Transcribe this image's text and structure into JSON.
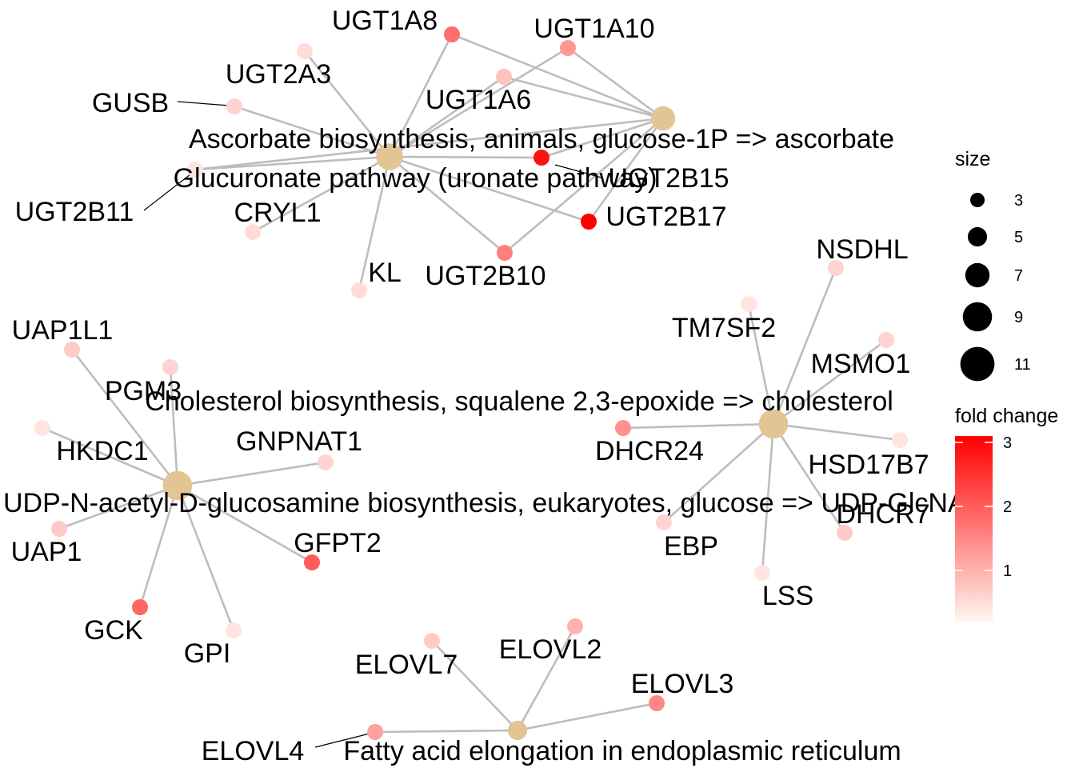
{
  "colors": {
    "category_node": "#E2C593",
    "edge": "#BDBDBD",
    "fold_change_low": "#FFF5F0",
    "fold_change_high": "#FF0000"
  },
  "categories": [
    {
      "id": "asc",
      "label": "Ascorbate biosynthesis, animals, glucose-1P => ascorbate",
      "size": 7
    },
    {
      "id": "glu",
      "label": "Glucuronate pathway (uronate pathway)",
      "size": 8
    },
    {
      "id": "chol",
      "label": "Cholesterol biosynthesis, squalene 2,3-epoxide => cholesterol",
      "size": 9
    },
    {
      "id": "udp",
      "label": "UDP-N-acetyl-D-glucosamine biosynthesis, eukaryotes, glucose => UDP-GlcNAc",
      "size": 9
    },
    {
      "id": "fat",
      "label": "Fatty acid elongation in endoplasmic reticulum",
      "size": 5
    }
  ],
  "genes": [
    {
      "id": "UGT1A8",
      "label": "UGT1A8",
      "fold_change": 1.8
    },
    {
      "id": "UGT1A10",
      "label": "UGT1A10",
      "fold_change": 1.3
    },
    {
      "id": "UGT2A3",
      "label": "UGT2A3",
      "fold_change": 0.5
    },
    {
      "id": "UGT1A6",
      "label": "UGT1A6",
      "fold_change": 0.8
    },
    {
      "id": "GUSB",
      "label": "GUSB",
      "fold_change": 0.6
    },
    {
      "id": "UGT2B15",
      "label": "UGT2B15",
      "fold_change": 2.9
    },
    {
      "id": "UGT2B11",
      "label": "UGT2B11",
      "fold_change": 0.4
    },
    {
      "id": "UGT2B17",
      "label": "UGT2B17",
      "fold_change": 3.1
    },
    {
      "id": "CRYL1",
      "label": "CRYL1",
      "fold_change": 0.5
    },
    {
      "id": "UGT2B10",
      "label": "UGT2B10",
      "fold_change": 1.6
    },
    {
      "id": "KL",
      "label": "KL",
      "fold_change": 0.5
    },
    {
      "id": "NSDHL",
      "label": "NSDHL",
      "fold_change": 0.6
    },
    {
      "id": "TM7SF2",
      "label": "TM7SF2",
      "fold_change": 0.4
    },
    {
      "id": "MSMO1",
      "label": "MSMO1",
      "fold_change": 0.6
    },
    {
      "id": "DHCR24",
      "label": "DHCR24",
      "fold_change": 1.4
    },
    {
      "id": "HSD17B7",
      "label": "HSD17B7",
      "fold_change": 0.4
    },
    {
      "id": "DHCR7",
      "label": "DHCR7",
      "fold_change": 0.7
    },
    {
      "id": "EBP",
      "label": "EBP",
      "fold_change": 0.6
    },
    {
      "id": "LSS",
      "label": "LSS",
      "fold_change": 0.4
    },
    {
      "id": "UAP1L1",
      "label": "UAP1L1",
      "fold_change": 0.7
    },
    {
      "id": "PGM3",
      "label": "PGM3",
      "fold_change": 0.6
    },
    {
      "id": "HKDC1",
      "label": "HKDC1",
      "fold_change": 0.4
    },
    {
      "id": "GNPNAT1",
      "label": "GNPNAT1",
      "fold_change": 0.6
    },
    {
      "id": "UAP1",
      "label": "UAP1",
      "fold_change": 0.7
    },
    {
      "id": "GFPT2",
      "label": "GFPT2",
      "fold_change": 2.0
    },
    {
      "id": "GCK",
      "label": "GCK",
      "fold_change": 1.9
    },
    {
      "id": "GPI",
      "label": "GPI",
      "fold_change": 0.4
    },
    {
      "id": "ELOVL7",
      "label": "ELOVL7",
      "fold_change": 0.7
    },
    {
      "id": "ELOVL2",
      "label": "ELOVL2",
      "fold_change": 1.0
    },
    {
      "id": "ELOVL3",
      "label": "ELOVL3",
      "fold_change": 1.5
    },
    {
      "id": "ELOVL4",
      "label": "ELOVL4",
      "fold_change": 1.2
    }
  ],
  "edges": [
    [
      "glu",
      "UGT1A8"
    ],
    [
      "glu",
      "UGT1A10"
    ],
    [
      "glu",
      "UGT2A3"
    ],
    [
      "glu",
      "UGT1A6"
    ],
    [
      "glu",
      "GUSB"
    ],
    [
      "glu",
      "UGT2B15"
    ],
    [
      "glu",
      "UGT2B11"
    ],
    [
      "glu",
      "UGT2B17"
    ],
    [
      "glu",
      "CRYL1"
    ],
    [
      "glu",
      "UGT2B10"
    ],
    [
      "glu",
      "KL"
    ],
    [
      "asc",
      "UGT1A8"
    ],
    [
      "asc",
      "UGT1A10"
    ],
    [
      "asc",
      "UGT1A6"
    ],
    [
      "asc",
      "UGT2B15"
    ],
    [
      "asc",
      "UGT2B17"
    ],
    [
      "asc",
      "UGT2B10"
    ],
    [
      "asc",
      "UGT2B11"
    ],
    [
      "chol",
      "NSDHL"
    ],
    [
      "chol",
      "TM7SF2"
    ],
    [
      "chol",
      "MSMO1"
    ],
    [
      "chol",
      "DHCR24"
    ],
    [
      "chol",
      "HSD17B7"
    ],
    [
      "chol",
      "DHCR7"
    ],
    [
      "chol",
      "EBP"
    ],
    [
      "chol",
      "LSS"
    ],
    [
      "udp",
      "UAP1L1"
    ],
    [
      "udp",
      "PGM3"
    ],
    [
      "udp",
      "HKDC1"
    ],
    [
      "udp",
      "GNPNAT1"
    ],
    [
      "udp",
      "UAP1"
    ],
    [
      "udp",
      "GFPT2"
    ],
    [
      "udp",
      "GCK"
    ],
    [
      "udp",
      "GPI"
    ],
    [
      "fat",
      "ELOVL7"
    ],
    [
      "fat",
      "ELOVL2"
    ],
    [
      "fat",
      "ELOVL3"
    ],
    [
      "fat",
      "ELOVL4"
    ]
  ],
  "legend": {
    "size_title": "size",
    "size_values": [
      3,
      5,
      7,
      9,
      11
    ],
    "size_labels": [
      "3",
      "5",
      "7",
      "9",
      "11"
    ],
    "color_title": "fold change",
    "color_range": [
      0.2,
      3.1
    ],
    "color_ticks": [
      1,
      2,
      3
    ],
    "color_tick_labels": [
      "1",
      "2",
      "3"
    ]
  }
}
